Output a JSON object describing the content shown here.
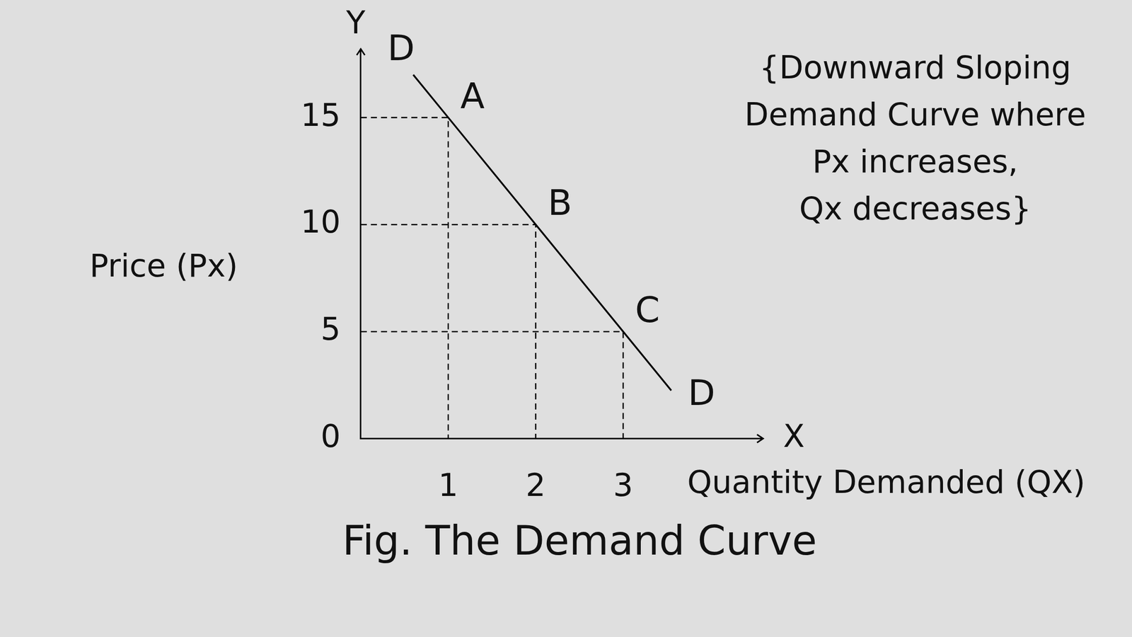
{
  "chart_data": {
    "type": "line",
    "title": "Fig. The Demand Curve",
    "x_label": "Quantity Demanded (QX)",
    "y_label": "Price (Px)",
    "x_axis_name": "X",
    "y_axis_name": "Y",
    "annotation": [
      "{Downward Sloping",
      "Demand Curve where",
      "Px increases,",
      "Qx decreases}"
    ],
    "series": [
      {
        "name": "D",
        "color": "#000000",
        "x": [
          0.6,
          1,
          2,
          3,
          3.55
        ],
        "values": [
          17,
          15,
          10,
          5,
          2.25
        ]
      }
    ],
    "points": {
      "labels": [
        "A",
        "B",
        "C"
      ],
      "x": [
        1,
        2,
        3
      ],
      "values": [
        15,
        10,
        5
      ],
      "line_style": "dashed",
      "color": "#000000"
    },
    "xlim": [
      0,
      4.6
    ],
    "ylim": [
      0,
      18.2
    ],
    "xticks": [
      1,
      2,
      3
    ],
    "yticks": [
      0,
      5,
      10,
      15
    ],
    "grid": false
  }
}
